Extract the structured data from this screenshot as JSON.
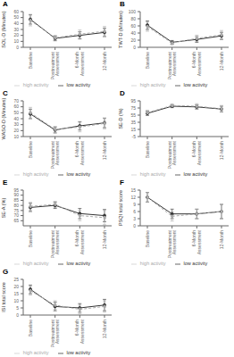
{
  "chart_data": [
    {
      "type": "line",
      "title": "A",
      "ylabel": "SOL-D (Minutes)",
      "categories": [
        "Baseline",
        "Posttreatment\nAssessment",
        "6-Month\nAssessment",
        "12-Month"
      ],
      "series": [
        {
          "name": "low activity",
          "color": "#333333",
          "line_style": "solid",
          "marker": "circle",
          "values": [
            47,
            15,
            20,
            25
          ],
          "errors": [
            8,
            4,
            6,
            7
          ]
        },
        {
          "name": "high activity",
          "color": "#aaaaaa",
          "line_style": "dashed",
          "marker": "circle",
          "values": [
            45,
            16,
            22,
            27
          ],
          "errors": [
            9,
            4,
            7,
            8
          ]
        }
      ],
      "ylim": [
        0,
        60
      ],
      "yticks": [
        0,
        10,
        20,
        30,
        40,
        50,
        60
      ],
      "grid": false,
      "legend": "bottom"
    },
    {
      "type": "line",
      "title": "B",
      "ylabel": "TWT-D (Minutes)",
      "categories": [
        "Baseline",
        "Posttreatment\nAssessment",
        "6-Month\nAssessment",
        "12-Month"
      ],
      "series": [
        {
          "name": "low activity",
          "color": "#333333",
          "line_style": "solid",
          "marker": "circle",
          "values": [
            62,
            14,
            22,
            32
          ],
          "errors": [
            12,
            5,
            8,
            10
          ]
        },
        {
          "name": "high activity",
          "color": "#aaaaaa",
          "line_style": "dashed",
          "marker": "circle",
          "values": [
            58,
            12,
            25,
            35
          ],
          "errors": [
            13,
            5,
            9,
            12
          ]
        }
      ],
      "ylim": [
        0,
        100
      ],
      "yticks": [
        0,
        20,
        40,
        60,
        80,
        100
      ],
      "grid": false,
      "legend": "bottom"
    },
    {
      "type": "line",
      "title": "C",
      "ylabel": "WASO-D (Minutes)",
      "categories": [
        "Baseline",
        "Posttreatment\nAssessment",
        "6-Month\nAssessment",
        "12-Month"
      ],
      "series": [
        {
          "name": "low activity",
          "color": "#333333",
          "line_style": "solid",
          "marker": "circle",
          "values": [
            48,
            21,
            28,
            33
          ],
          "errors": [
            8,
            5,
            7,
            8
          ]
        },
        {
          "name": "high activity",
          "color": "#aaaaaa",
          "line_style": "dashed",
          "marker": "circle",
          "values": [
            50,
            22,
            26,
            32
          ],
          "errors": [
            9,
            5,
            8,
            9
          ]
        }
      ],
      "ylim": [
        10,
        70
      ],
      "yticks": [
        10,
        20,
        30,
        40,
        50,
        60,
        70
      ],
      "grid": false,
      "legend": "bottom"
    },
    {
      "type": "line",
      "title": "D",
      "ylabel": "SE-D (%)",
      "categories": [
        "Baseline",
        "Posttreatment\nAssessment",
        "6-Month\nAssessment",
        "12-Month"
      ],
      "series": [
        {
          "name": "low activity",
          "color": "#333333",
          "line_style": "solid",
          "marker": "circle",
          "values": [
            60,
            80,
            78,
            72
          ],
          "errors": [
            6,
            4,
            6,
            8
          ]
        },
        {
          "name": "high activity",
          "color": "#aaaaaa",
          "line_style": "dashed",
          "marker": "circle",
          "values": [
            62,
            82,
            80,
            73
          ],
          "errors": [
            7,
            4,
            7,
            9
          ]
        }
      ],
      "ylim": [
        -5,
        95
      ],
      "yticks": [
        -5,
        15,
        35,
        55,
        75,
        95
      ],
      "grid": false,
      "legend": "bottom"
    },
    {
      "type": "line",
      "title": "E",
      "ylabel": "SE-A (%)",
      "categories": [
        "Baseline",
        "Posttreatment\nAssessment",
        "6-Month\nAssessment",
        "12-Month"
      ],
      "series": [
        {
          "name": "low activity",
          "color": "#333333",
          "line_style": "solid",
          "marker": "circle",
          "values": [
            78,
            80,
            72,
            70
          ],
          "errors": [
            4,
            3,
            5,
            6
          ]
        },
        {
          "name": "high activity",
          "color": "#aaaaaa",
          "line_style": "dashed",
          "marker": "circle",
          "values": [
            79,
            81,
            70,
            68
          ],
          "errors": [
            4,
            3,
            5,
            7
          ]
        }
      ],
      "ylim": [
        60,
        95
      ],
      "yticks": [
        65,
        70,
        75,
        80,
        85,
        90,
        95
      ],
      "grid": false,
      "legend": "bottom"
    },
    {
      "type": "line",
      "title": "F",
      "ylabel": "PSQI total score",
      "categories": [
        "Baseline",
        "Posttreatment\nAssessment",
        "6-Month\nAssessment",
        "12-Month"
      ],
      "series": [
        {
          "name": "low activity",
          "color": "#333333",
          "line_style": "solid",
          "marker": "circle",
          "values": [
            12,
            5,
            5,
            6
          ],
          "errors": [
            2,
            2,
            2,
            3
          ]
        },
        {
          "name": "high activity",
          "color": "#aaaaaa",
          "line_style": "dashed",
          "marker": "circle",
          "values": [
            12,
            4,
            5,
            6
          ],
          "errors": [
            2,
            2,
            2,
            3
          ]
        }
      ],
      "ylim": [
        0,
        15
      ],
      "yticks": [
        0,
        3,
        6,
        9,
        12,
        15
      ],
      "grid": false,
      "legend": "bottom"
    },
    {
      "type": "line",
      "title": "G",
      "ylabel": "ISI total score",
      "categories": [
        "Baseline",
        "Posttreatment\nAssessment",
        "6-Month\nAssessment",
        "12-Month"
      ],
      "series": [
        {
          "name": "low activity",
          "color": "#333333",
          "line_style": "solid",
          "marker": "circle",
          "values": [
            18,
            6,
            5,
            7
          ],
          "errors": [
            3,
            3,
            3,
            4
          ]
        },
        {
          "name": "high activity",
          "color": "#aaaaaa",
          "line_style": "dashed",
          "marker": "circle",
          "values": [
            17,
            7,
            4,
            6
          ],
          "errors": [
            3,
            3,
            3,
            4
          ]
        }
      ],
      "ylim": [
        0,
        25
      ],
      "yticks": [
        0,
        5,
        10,
        15,
        20,
        25
      ],
      "grid": false,
      "legend": "bottom"
    }
  ]
}
